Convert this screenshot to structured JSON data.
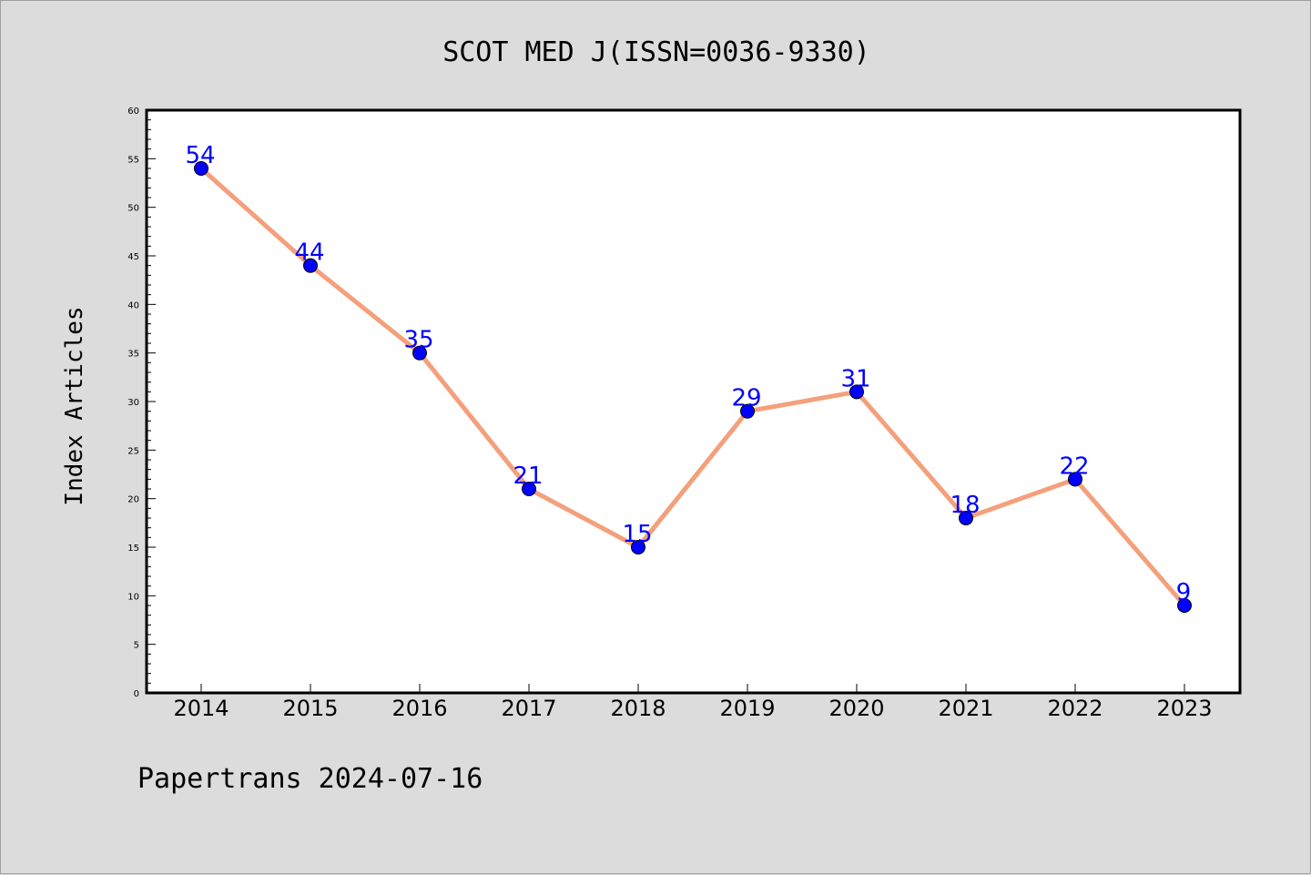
{
  "chart_data": {
    "type": "line",
    "title": "SCOT MED J(ISSN=0036-9330)",
    "xlabel": "",
    "ylabel": "Index Articles",
    "categories": [
      "2014",
      "2015",
      "2016",
      "2017",
      "2018",
      "2019",
      "2020",
      "2021",
      "2022",
      "2023"
    ],
    "series": [
      {
        "values": [
          54,
          44,
          35,
          21,
          15,
          29,
          31,
          18,
          22,
          9
        ]
      }
    ],
    "ylim": [
      0,
      60
    ],
    "yticks": [
      0,
      5,
      10,
      15,
      20,
      25,
      30,
      35,
      40,
      45,
      50,
      55,
      60
    ],
    "grid": false,
    "line_color": "#f4a07c",
    "marker_color": "#0000ff",
    "label_color": "#0000ff"
  },
  "footer": "Papertrans 2024-07-16"
}
